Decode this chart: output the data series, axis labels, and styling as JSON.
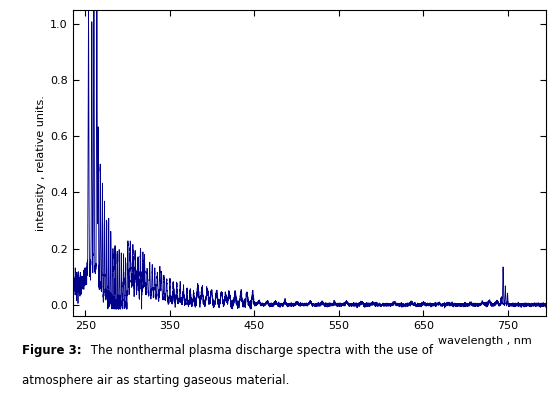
{
  "xlabel": "wavelength , nm",
  "ylabel": "intensity , relative units.",
  "xlim": [
    235,
    795
  ],
  "ylim": [
    -0.04,
    1.05
  ],
  "yticks": [
    0.0,
    0.2,
    0.4,
    0.6,
    0.8,
    1.0
  ],
  "xticks": [
    250,
    350,
    450,
    550,
    650,
    750
  ],
  "line_color": "#00008B",
  "line_width": 0.6,
  "background_color": "#ffffff",
  "caption_bold": "Figure 3:",
  "caption_rest": "  The nonthermal plasma discharge spectra with the use of atmosphere air as starting gaseous material."
}
